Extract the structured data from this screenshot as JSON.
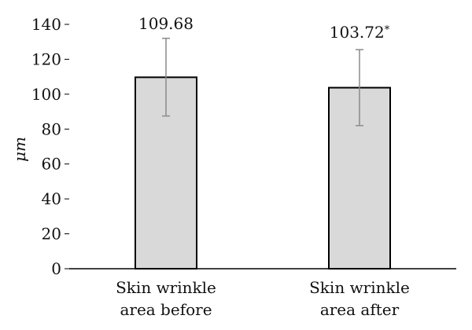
{
  "chart_data": {
    "type": "bar",
    "title": "",
    "xlabel": "",
    "ylabel": "μm",
    "ylim": [
      0,
      140
    ],
    "yticks": [
      0,
      20,
      40,
      60,
      80,
      100,
      120,
      140
    ],
    "grid": false,
    "categories": [
      [
        "Skin wrinkle",
        "area before"
      ],
      [
        "Skin wrinkle",
        "area after"
      ]
    ],
    "values": [
      109.68,
      103.72
    ],
    "error_low": [
      87.5,
      82.0
    ],
    "error_high": [
      132.0,
      125.5
    ],
    "data_labels": [
      "109.68",
      "103.72"
    ],
    "significance_marks": [
      "",
      "*"
    ],
    "colors": {
      "bar_fill": "#d9d9d9",
      "bar_stroke": "#000000",
      "error_bar": "#8a8a8a",
      "axis": "#000000"
    }
  }
}
